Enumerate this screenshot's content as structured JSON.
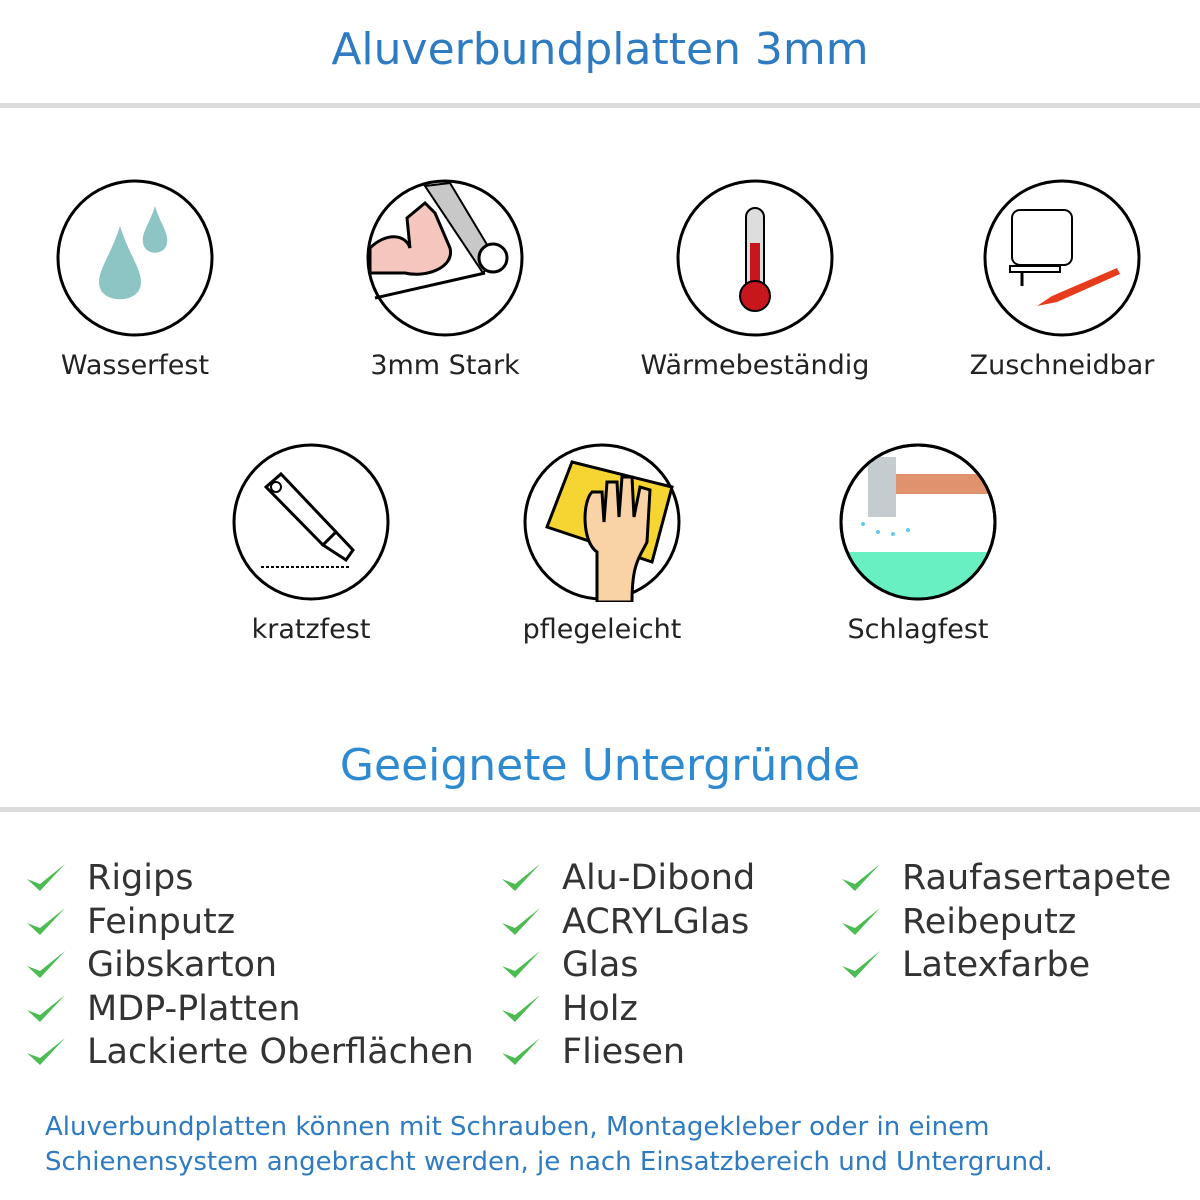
{
  "header": {
    "title": "Aluverbundplatten 3mm"
  },
  "features": [
    {
      "label": "Wasserfest",
      "icon": "water-drops-icon"
    },
    {
      "label": "3mm Stark",
      "icon": "strong-arm-icon"
    },
    {
      "label": "Wärmebeständig",
      "icon": "thermometer-icon"
    },
    {
      "label": "Zuschneidbar",
      "icon": "jigsaw-cutter-icon"
    },
    {
      "label": "kratzfest",
      "icon": "box-cutter-icon"
    },
    {
      "label": "pflegeleicht",
      "icon": "hand-cloth-icon"
    },
    {
      "label": "Schlagfest",
      "icon": "hammer-icon"
    }
  ],
  "surfaces": {
    "title": "Geeignete Untergründe",
    "columns": [
      [
        "Rigips",
        "Feinputz",
        "Gibskarton",
        "MDP-Platten",
        "Lackierte Oberflächen"
      ],
      [
        "Alu-Dibond",
        "ACRYLGlas",
        "Glas",
        "Holz",
        "Fliesen"
      ],
      [
        "Raufasertapete",
        "Reibeputz",
        "Latexfarbe"
      ]
    ]
  },
  "footer": {
    "line1": "Aluverbundplatten können mit Schrauben, Montagekleber oder in einem",
    "line2": "Schienensystem angebracht werden, je nach Einsatzbereich und Untergrund."
  },
  "colors": {
    "accent": "#2f7bc2",
    "check": "#4cbb52",
    "text": "#333333"
  }
}
